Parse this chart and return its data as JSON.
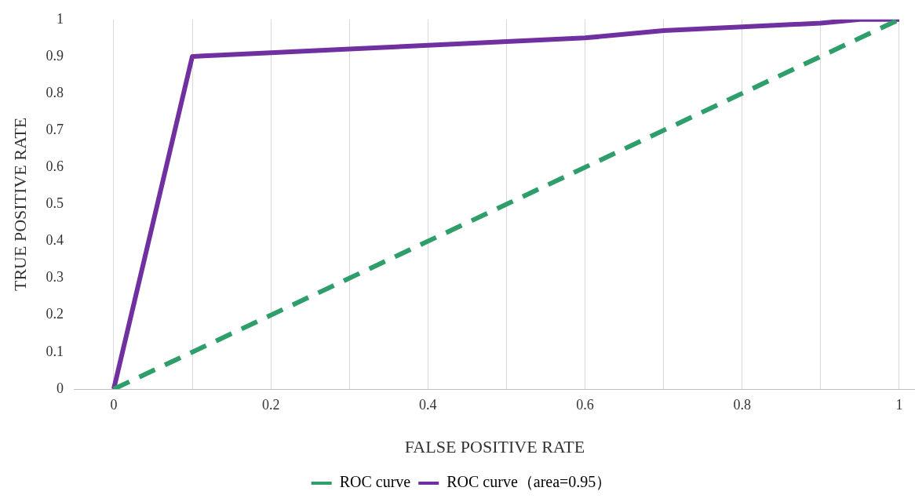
{
  "chart_data": {
    "type": "line",
    "xlabel": "FALSE POSITIVE RATE",
    "ylabel": "TRUE POSITIVE RATE",
    "xlim": [
      -0.05,
      1.02
    ],
    "ylim": [
      0,
      1
    ],
    "xticks": [
      0,
      {
        "value": 0.1,
        "label": null
      },
      0.2,
      {
        "value": 0.3,
        "label": null
      },
      0.4,
      {
        "value": 0.5,
        "label": null
      },
      0.6,
      {
        "value": 0.7,
        "label": null
      },
      0.8,
      {
        "value": 0.9,
        "label": null
      },
      1
    ],
    "yticks": [
      0,
      0.1,
      0.2,
      0.3,
      0.4,
      0.5,
      0.6,
      0.7,
      0.8,
      0.9,
      1
    ],
    "grid": "x",
    "legend": "bottom",
    "marker": "none",
    "series": [
      {
        "name": "ROC curve",
        "color": "#2e9e6b",
        "line_style": "dashed",
        "x": [
          0,
          1
        ],
        "values": [
          0,
          1
        ]
      },
      {
        "name": "ROC curve（area=0.95）",
        "color": "#7030a0",
        "line_style": "solid",
        "x": [
          0,
          0.1,
          0.2,
          0.3,
          0.4,
          0.5,
          0.6,
          0.7,
          0.8,
          0.9,
          0.95,
          1
        ],
        "values": [
          0,
          0.9,
          0.91,
          0.92,
          0.93,
          0.94,
          0.95,
          0.97,
          0.98,
          0.99,
          1,
          1
        ]
      }
    ]
  }
}
